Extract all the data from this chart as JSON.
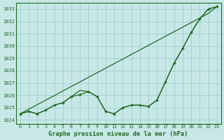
{
  "background_color": "#c8e8e8",
  "grid_color": "#9ecece",
  "line_color": "#1e6b1e",
  "title": "Graphe pression niveau de la mer (hPa)",
  "xlim": [
    -0.5,
    23.5
  ],
  "ylim": [
    1023.7,
    1033.5
  ],
  "yticks": [
    1024,
    1025,
    1026,
    1027,
    1028,
    1029,
    1030,
    1031,
    1032,
    1033
  ],
  "xticks": [
    0,
    1,
    2,
    3,
    4,
    5,
    6,
    7,
    8,
    9,
    10,
    11,
    12,
    13,
    14,
    15,
    16,
    17,
    18,
    19,
    20,
    21,
    22,
    23
  ],
  "line_straight": [
    1024.5,
    1024.87,
    1025.24,
    1025.61,
    1025.98,
    1026.35,
    1026.72,
    1027.09,
    1027.46,
    1027.83,
    1028.2,
    1028.57,
    1028.94,
    1029.31,
    1029.68,
    1030.05,
    1030.42,
    1030.79,
    1031.16,
    1031.53,
    1031.9,
    1032.27,
    1032.64,
    1033.2
  ],
  "line_wavy": [
    1024.5,
    1024.7,
    1024.5,
    1024.8,
    1025.2,
    1025.4,
    1025.9,
    1026.05,
    1026.3,
    1025.9,
    1024.7,
    1024.5,
    1025.0,
    1025.2,
    1025.2,
    1025.1,
    1025.6,
    1027.1,
    1028.6,
    1029.8,
    1031.1,
    1032.2,
    1033.0,
    1033.2
  ],
  "line_mid": [
    1024.5,
    1024.7,
    1024.5,
    1024.8,
    1025.2,
    1025.4,
    1025.9,
    1026.4,
    1026.3,
    1025.9,
    1024.7,
    1024.5,
    1025.0,
    1025.2,
    1025.2,
    1025.1,
    1025.6,
    1027.1,
    1028.6,
    1029.8,
    1031.1,
    1032.2,
    1033.0,
    1033.2
  ]
}
